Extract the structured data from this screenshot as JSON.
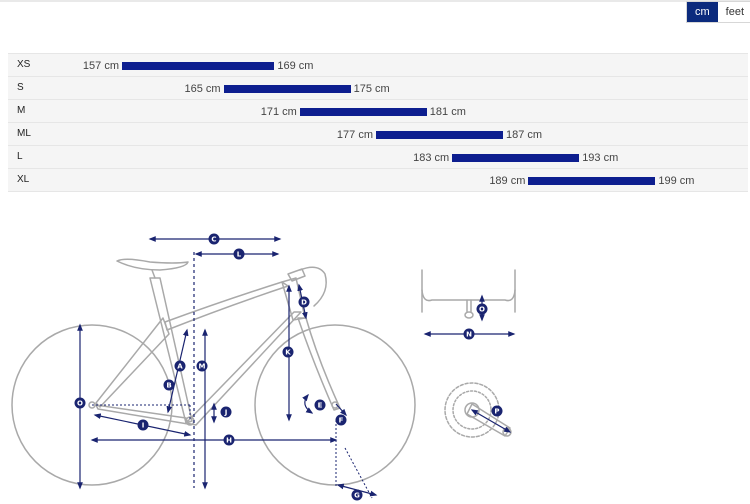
{
  "unit_toggle": {
    "options": [
      {
        "label": "cm",
        "active": true
      },
      {
        "label": "feet",
        "active": false
      }
    ]
  },
  "size_chart": {
    "bar_color": "#0d1e8f",
    "axis_min_cm": 150,
    "axis_max_cm": 205,
    "rows": [
      {
        "size": "XS",
        "min": "157 cm",
        "max": "169 cm",
        "min_value": 157,
        "max_value": 169
      },
      {
        "size": "S",
        "min": "165 cm",
        "max": "175 cm",
        "min_value": 165,
        "max_value": 175
      },
      {
        "size": "M",
        "min": "171 cm",
        "max": "181 cm",
        "min_value": 171,
        "max_value": 181
      },
      {
        "size": "ML",
        "min": "177 cm",
        "max": "187 cm",
        "min_value": 177,
        "max_value": 187
      },
      {
        "size": "L",
        "min": "183 cm",
        "max": "193 cm",
        "min_value": 183,
        "max_value": 193
      },
      {
        "size": "XL",
        "min": "189 cm",
        "max": "199 cm",
        "min_value": 189,
        "max_value": 199
      }
    ]
  },
  "geometry": {
    "markers": [
      "A",
      "B",
      "C",
      "D",
      "E",
      "F",
      "G",
      "H",
      "I",
      "J",
      "K",
      "L",
      "M",
      "N",
      "O",
      "P"
    ],
    "line_color": "#1a2470",
    "frame_color": "#a9a9a9"
  }
}
